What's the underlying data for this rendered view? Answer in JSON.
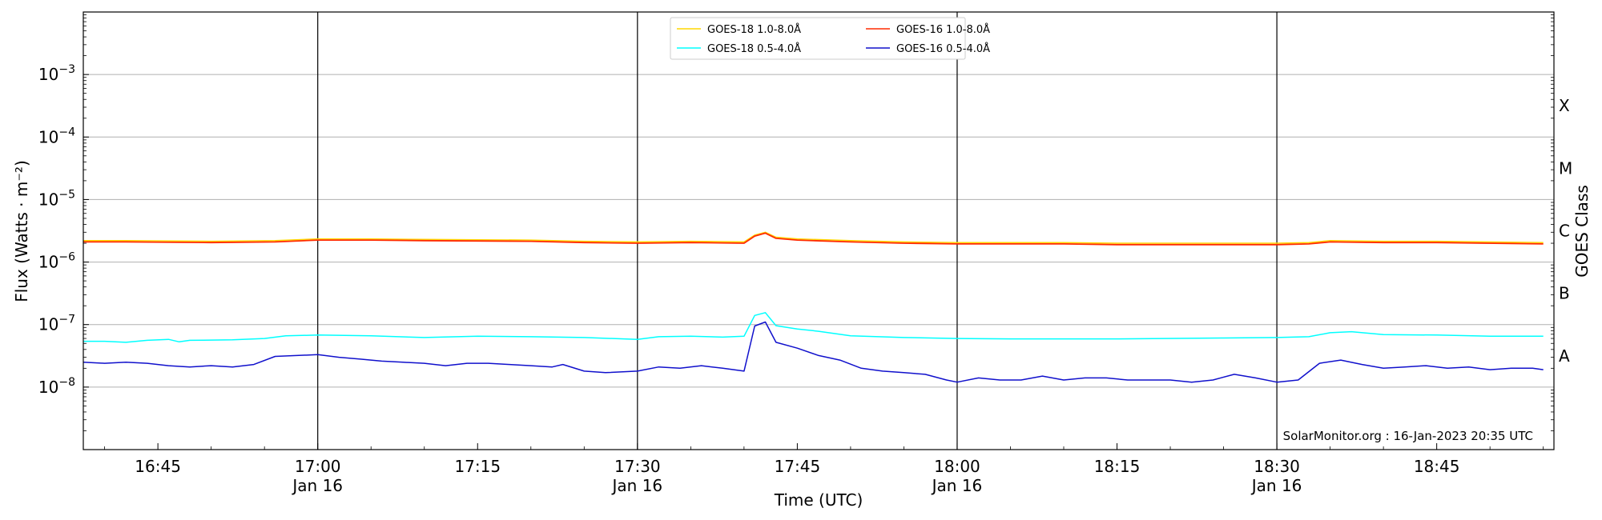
{
  "chart_data": {
    "type": "line",
    "xlabel": "Time (UTC)",
    "ylabel": "Flux (Watts · m⁻²)",
    "y2label": "GOES Class",
    "y_scale": "log",
    "xlim": [
      "2023-01-16T16:38",
      "2023-01-16T18:56"
    ],
    "ylim": [
      1e-09,
      0.01
    ],
    "grid": "horizontal",
    "legend_position": "top-center",
    "credit": "SolarMonitor.org : 16-Jan-2023 20:35 UTC",
    "x_ticks": [
      {
        "time": "16:45",
        "label": "16:45",
        "sublabel": ""
      },
      {
        "time": "17:00",
        "label": "17:00",
        "sublabel": "Jan 16"
      },
      {
        "time": "17:15",
        "label": "17:15",
        "sublabel": ""
      },
      {
        "time": "17:30",
        "label": "17:30",
        "sublabel": "Jan 16"
      },
      {
        "time": "17:45",
        "label": "17:45",
        "sublabel": ""
      },
      {
        "time": "18:00",
        "label": "18:00",
        "sublabel": "Jan 16"
      },
      {
        "time": "18:15",
        "label": "18:15",
        "sublabel": ""
      },
      {
        "time": "18:30",
        "label": "18:30",
        "sublabel": "Jan 16"
      },
      {
        "time": "18:45",
        "label": "18:45",
        "sublabel": ""
      }
    ],
    "day_markers": [
      "17:00",
      "17:30",
      "18:00",
      "18:30"
    ],
    "y_ticks": [
      {
        "value": 1e-08,
        "base": "10",
        "exp": "−8"
      },
      {
        "value": 1e-07,
        "base": "10",
        "exp": "−7"
      },
      {
        "value": 1e-06,
        "base": "10",
        "exp": "−6"
      },
      {
        "value": 1e-05,
        "base": "10",
        "exp": "−5"
      },
      {
        "value": 0.0001,
        "base": "10",
        "exp": "−4"
      },
      {
        "value": 0.001,
        "base": "10",
        "exp": "−3"
      }
    ],
    "goes_classes": [
      {
        "label": "A",
        "value": 3.16e-08
      },
      {
        "label": "B",
        "value": 3.16e-07
      },
      {
        "label": "C",
        "value": 3.16e-06
      },
      {
        "label": "M",
        "value": 3.16e-05
      },
      {
        "label": "X",
        "value": 0.000316
      }
    ],
    "series": [
      {
        "name": "GOES-18 1.0-8.0Å",
        "color": "#ffd700",
        "points": [
          [
            "16:38",
            2.2e-06
          ],
          [
            "16:42",
            2.2e-06
          ],
          [
            "16:50",
            2.15e-06
          ],
          [
            "16:56",
            2.2e-06
          ],
          [
            "17:00",
            2.35e-06
          ],
          [
            "17:05",
            2.35e-06
          ],
          [
            "17:10",
            2.3e-06
          ],
          [
            "17:20",
            2.25e-06
          ],
          [
            "17:25",
            2.15e-06
          ],
          [
            "17:30",
            2.1e-06
          ],
          [
            "17:35",
            2.15e-06
          ],
          [
            "17:40",
            2.1e-06
          ],
          [
            "17:41",
            2.7e-06
          ],
          [
            "17:42",
            3e-06
          ],
          [
            "17:43",
            2.5e-06
          ],
          [
            "17:45",
            2.35e-06
          ],
          [
            "17:50",
            2.2e-06
          ],
          [
            "17:55",
            2.1e-06
          ],
          [
            "18:00",
            2.05e-06
          ],
          [
            "18:10",
            2.05e-06
          ],
          [
            "18:15",
            2e-06
          ],
          [
            "18:25",
            2e-06
          ],
          [
            "18:30",
            2e-06
          ],
          [
            "18:33",
            2.05e-06
          ],
          [
            "18:35",
            2.2e-06
          ],
          [
            "18:40",
            2.15e-06
          ],
          [
            "18:45",
            2.15e-06
          ],
          [
            "18:55",
            2.05e-06
          ]
        ]
      },
      {
        "name": "GOES-18 0.5-4.0Å",
        "color": "#00ffff",
        "points": [
          [
            "16:38",
            5.4e-08
          ],
          [
            "16:40",
            5.4e-08
          ],
          [
            "16:42",
            5.2e-08
          ],
          [
            "16:44",
            5.6e-08
          ],
          [
            "16:46",
            5.8e-08
          ],
          [
            "16:47",
            5.3e-08
          ],
          [
            "16:48",
            5.6e-08
          ],
          [
            "16:52",
            5.7e-08
          ],
          [
            "16:55",
            6e-08
          ],
          [
            "16:57",
            6.6e-08
          ],
          [
            "17:00",
            6.8e-08
          ],
          [
            "17:05",
            6.6e-08
          ],
          [
            "17:10",
            6.2e-08
          ],
          [
            "17:15",
            6.5e-08
          ],
          [
            "17:20",
            6.4e-08
          ],
          [
            "17:25",
            6.2e-08
          ],
          [
            "17:30",
            5.8e-08
          ],
          [
            "17:32",
            6.4e-08
          ],
          [
            "17:35",
            6.5e-08
          ],
          [
            "17:38",
            6.3e-08
          ],
          [
            "17:40",
            6.5e-08
          ],
          [
            "17:41",
            1.4e-07
          ],
          [
            "17:42",
            1.55e-07
          ],
          [
            "17:43",
            9.6e-08
          ],
          [
            "17:45",
            8.5e-08
          ],
          [
            "17:47",
            7.8e-08
          ],
          [
            "17:50",
            6.6e-08
          ],
          [
            "17:55",
            6.2e-08
          ],
          [
            "18:00",
            6e-08
          ],
          [
            "18:05",
            5.9e-08
          ],
          [
            "18:15",
            5.9e-08
          ],
          [
            "18:25",
            6.1e-08
          ],
          [
            "18:30",
            6.2e-08
          ],
          [
            "18:33",
            6.4e-08
          ],
          [
            "18:35",
            7.4e-08
          ],
          [
            "18:37",
            7.7e-08
          ],
          [
            "18:40",
            6.9e-08
          ],
          [
            "18:45",
            6.8e-08
          ],
          [
            "18:50",
            6.5e-08
          ],
          [
            "18:55",
            6.5e-08
          ]
        ]
      },
      {
        "name": "GOES-16 1.0-8.0Å",
        "color": "#ff2a00",
        "points": [
          [
            "16:38",
            2.1e-06
          ],
          [
            "16:42",
            2.1e-06
          ],
          [
            "16:50",
            2.05e-06
          ],
          [
            "16:56",
            2.1e-06
          ],
          [
            "17:00",
            2.25e-06
          ],
          [
            "17:05",
            2.25e-06
          ],
          [
            "17:10",
            2.2e-06
          ],
          [
            "17:20",
            2.15e-06
          ],
          [
            "17:25",
            2.05e-06
          ],
          [
            "17:30",
            2e-06
          ],
          [
            "17:35",
            2.05e-06
          ],
          [
            "17:40",
            2e-06
          ],
          [
            "17:41",
            2.6e-06
          ],
          [
            "17:42",
            2.9e-06
          ],
          [
            "17:43",
            2.4e-06
          ],
          [
            "17:45",
            2.25e-06
          ],
          [
            "17:50",
            2.1e-06
          ],
          [
            "17:55",
            2e-06
          ],
          [
            "18:00",
            1.95e-06
          ],
          [
            "18:10",
            1.95e-06
          ],
          [
            "18:15",
            1.9e-06
          ],
          [
            "18:25",
            1.9e-06
          ],
          [
            "18:30",
            1.9e-06
          ],
          [
            "18:33",
            1.95e-06
          ],
          [
            "18:35",
            2.1e-06
          ],
          [
            "18:40",
            2.05e-06
          ],
          [
            "18:45",
            2.05e-06
          ],
          [
            "18:55",
            1.95e-06
          ]
        ]
      },
      {
        "name": "GOES-16 0.5-4.0Å",
        "color": "#1010cc",
        "points": [
          [
            "16:38",
            2.5e-08
          ],
          [
            "16:40",
            2.4e-08
          ],
          [
            "16:42",
            2.5e-08
          ],
          [
            "16:44",
            2.4e-08
          ],
          [
            "16:46",
            2.2e-08
          ],
          [
            "16:48",
            2.1e-08
          ],
          [
            "16:50",
            2.2e-08
          ],
          [
            "16:52",
            2.1e-08
          ],
          [
            "16:54",
            2.3e-08
          ],
          [
            "16:56",
            3.1e-08
          ],
          [
            "16:58",
            3.2e-08
          ],
          [
            "17:00",
            3.3e-08
          ],
          [
            "17:02",
            3e-08
          ],
          [
            "17:04",
            2.8e-08
          ],
          [
            "17:06",
            2.6e-08
          ],
          [
            "17:08",
            2.5e-08
          ],
          [
            "17:10",
            2.4e-08
          ],
          [
            "17:12",
            2.2e-08
          ],
          [
            "17:14",
            2.4e-08
          ],
          [
            "17:16",
            2.4e-08
          ],
          [
            "17:18",
            2.3e-08
          ],
          [
            "17:20",
            2.2e-08
          ],
          [
            "17:22",
            2.1e-08
          ],
          [
            "17:23",
            2.3e-08
          ],
          [
            "17:25",
            1.8e-08
          ],
          [
            "17:27",
            1.7e-08
          ],
          [
            "17:30",
            1.8e-08
          ],
          [
            "17:32",
            2.1e-08
          ],
          [
            "17:34",
            2e-08
          ],
          [
            "17:36",
            2.2e-08
          ],
          [
            "17:38",
            2e-08
          ],
          [
            "17:40",
            1.8e-08
          ],
          [
            "17:41",
            9.5e-08
          ],
          [
            "17:42",
            1.1e-07
          ],
          [
            "17:43",
            5.2e-08
          ],
          [
            "17:45",
            4.2e-08
          ],
          [
            "17:47",
            3.2e-08
          ],
          [
            "17:49",
            2.7e-08
          ],
          [
            "17:51",
            2e-08
          ],
          [
            "17:53",
            1.8e-08
          ],
          [
            "17:55",
            1.7e-08
          ],
          [
            "17:57",
            1.6e-08
          ],
          [
            "17:59",
            1.3e-08
          ],
          [
            "18:00",
            1.2e-08
          ],
          [
            "18:02",
            1.4e-08
          ],
          [
            "18:04",
            1.3e-08
          ],
          [
            "18:06",
            1.3e-08
          ],
          [
            "18:08",
            1.5e-08
          ],
          [
            "18:10",
            1.3e-08
          ],
          [
            "18:12",
            1.4e-08
          ],
          [
            "18:14",
            1.4e-08
          ],
          [
            "18:16",
            1.3e-08
          ],
          [
            "18:18",
            1.3e-08
          ],
          [
            "18:20",
            1.3e-08
          ],
          [
            "18:22",
            1.2e-08
          ],
          [
            "18:24",
            1.3e-08
          ],
          [
            "18:26",
            1.6e-08
          ],
          [
            "18:28",
            1.4e-08
          ],
          [
            "18:30",
            1.2e-08
          ],
          [
            "18:32",
            1.3e-08
          ],
          [
            "18:34",
            2.4e-08
          ],
          [
            "18:36",
            2.7e-08
          ],
          [
            "18:38",
            2.3e-08
          ],
          [
            "18:40",
            2e-08
          ],
          [
            "18:42",
            2.1e-08
          ],
          [
            "18:44",
            2.2e-08
          ],
          [
            "18:46",
            2e-08
          ],
          [
            "18:48",
            2.1e-08
          ],
          [
            "18:50",
            1.9e-08
          ],
          [
            "18:52",
            2e-08
          ],
          [
            "18:54",
            2e-08
          ],
          [
            "18:55",
            1.9e-08
          ]
        ]
      }
    ]
  }
}
